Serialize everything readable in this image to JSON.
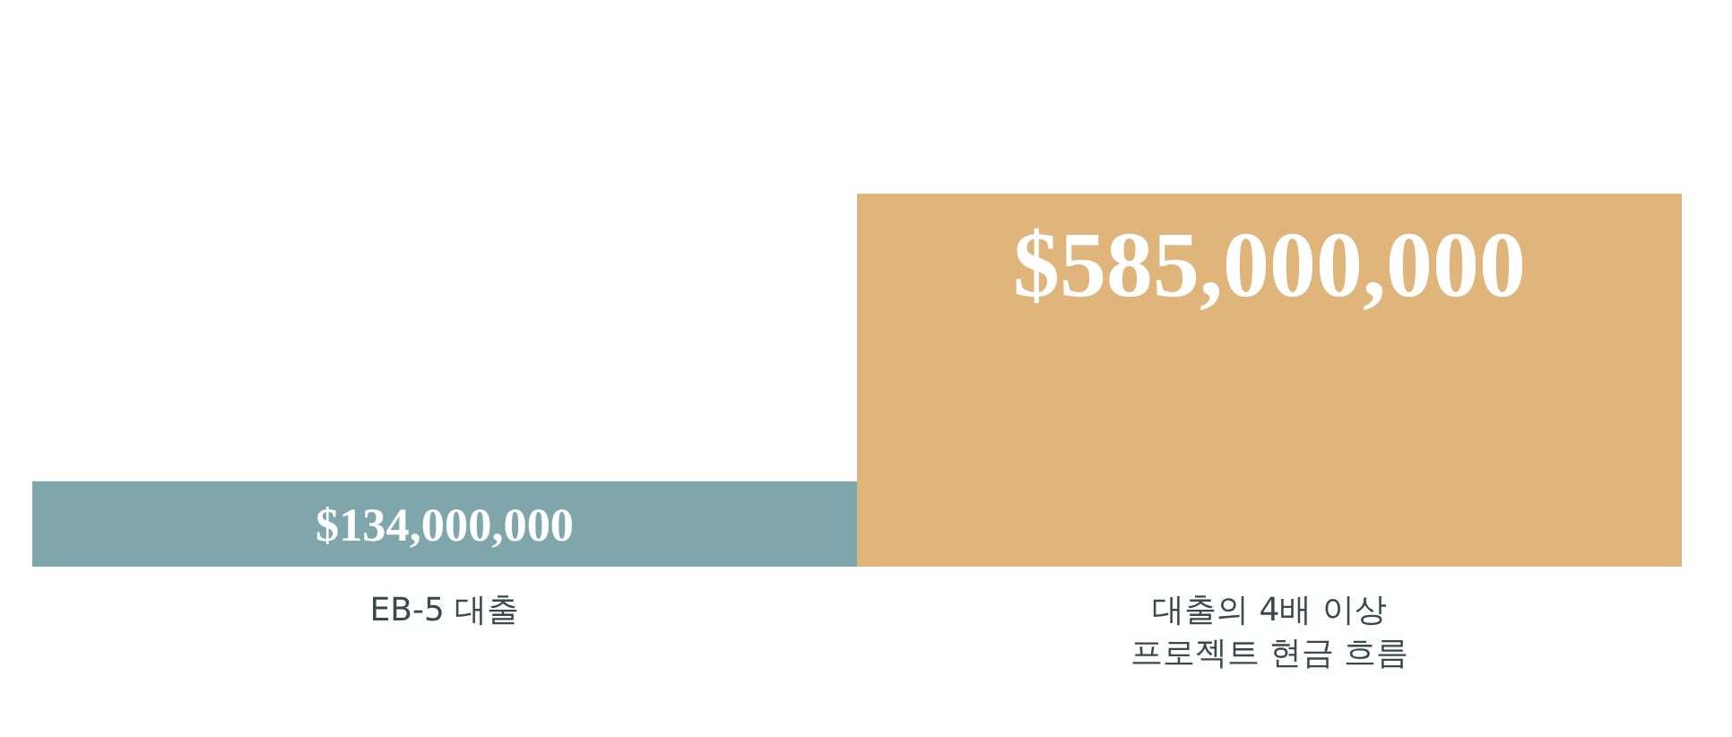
{
  "chart_data": {
    "type": "bar",
    "categories": [
      "EB-5 대출",
      "대출의 4배 이상\n프로젝트 현금 흐름"
    ],
    "values": [
      134000000,
      585000000
    ],
    "colors": [
      "#7fa7ab",
      "#e0b57c"
    ],
    "value_labels": [
      "$134,000,000",
      "$585,000,000"
    ],
    "grid": false,
    "legend": false
  }
}
